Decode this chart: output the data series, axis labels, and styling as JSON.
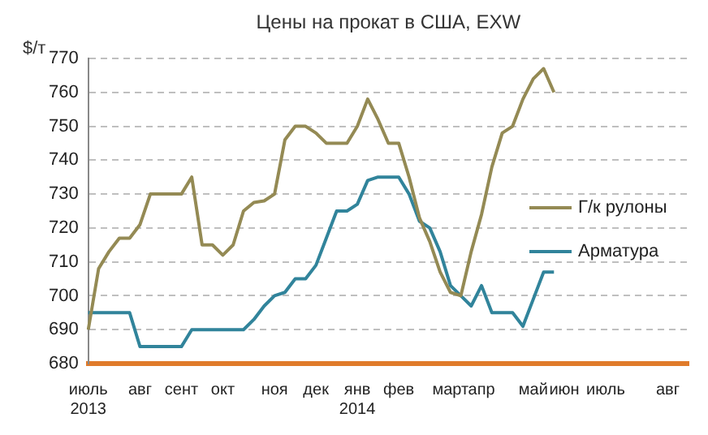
{
  "chart_data": {
    "type": "line",
    "title": "Цены на прокат в США, EXW",
    "ylabel": "$/т",
    "categories": [
      "июль\n2013",
      null,
      null,
      null,
      null,
      "авг",
      null,
      null,
      null,
      "сент",
      null,
      null,
      null,
      "окт",
      null,
      null,
      null,
      null,
      "ноя",
      null,
      null,
      null,
      "дек",
      null,
      null,
      null,
      "янв\n2014",
      null,
      null,
      null,
      "фев",
      null,
      null,
      null,
      null,
      "март",
      null,
      null,
      "апр",
      null,
      null,
      null,
      null,
      "май",
      null,
      null,
      "июн",
      null,
      null,
      null,
      "июль",
      null,
      null,
      null,
      null,
      null,
      "авг",
      null,
      null
    ],
    "series": [
      {
        "name": "Г/к рулоны",
        "color": "#948a54",
        "values": [
          690,
          708,
          713,
          717,
          717,
          721,
          730,
          730,
          730,
          730,
          735,
          715,
          715,
          712,
          715,
          725,
          727.5,
          728,
          730,
          746,
          750,
          750,
          748,
          745,
          745,
          745,
          750,
          758,
          752,
          745,
          745,
          735,
          723,
          716,
          707,
          701,
          700,
          713,
          724,
          738,
          748,
          750,
          758,
          764,
          767,
          760,
          null,
          null,
          null,
          null,
          null,
          null,
          null,
          null,
          null,
          null,
          null,
          null,
          null
        ]
      },
      {
        "name": "Арматура",
        "color": "#31849b",
        "values": [
          695,
          695,
          695,
          695,
          695,
          685,
          685,
          685,
          685,
          685,
          690,
          690,
          690,
          690,
          690,
          690,
          693,
          697,
          700,
          701,
          705,
          705,
          709,
          717,
          725,
          725,
          727,
          734,
          735,
          735,
          735,
          730,
          722,
          720,
          713,
          703,
          700,
          697,
          703,
          695,
          695,
          695,
          691,
          699,
          707,
          707,
          null,
          null,
          null,
          null,
          null,
          null,
          null,
          null,
          null,
          null,
          null,
          null,
          null
        ]
      }
    ],
    "ylim": [
      680,
      770
    ],
    "yticks": [
      680,
      690,
      700,
      710,
      720,
      730,
      740,
      750,
      760,
      770
    ],
    "grid": "y",
    "legend": "right",
    "marker": "none",
    "line_style": "solid"
  }
}
